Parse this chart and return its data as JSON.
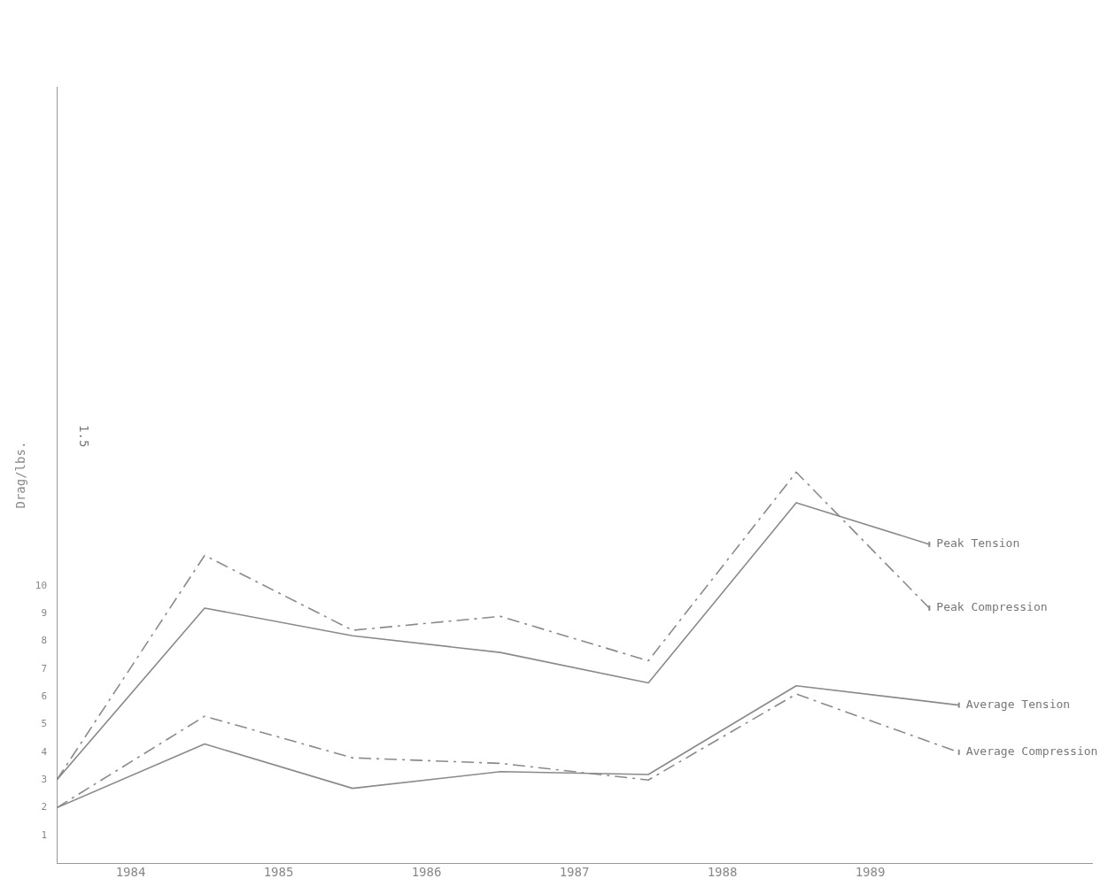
{
  "chart_data": {
    "type": "line",
    "ylabel": "Drag/lbs.",
    "annotations": [
      "1.5"
    ],
    "xlim": [
      1983.5,
      1990.5
    ],
    "xticks": [
      1984,
      1985,
      1986,
      1987,
      1988,
      1989
    ],
    "ylim": [
      0,
      28
    ],
    "yticks": [
      1,
      2,
      3,
      4,
      5,
      6,
      7,
      8,
      9,
      10
    ],
    "marker": "none",
    "legend": false,
    "series": [
      {
        "name": "Peak Tension",
        "color": "#8a8a8a",
        "line_style": "solid",
        "x": [
          1983.5,
          1984.5,
          1985.5,
          1986.5,
          1987.5,
          1988.5,
          1989.4
        ],
        "values": [
          3.0,
          9.2,
          8.2,
          7.6,
          6.5,
          13.0,
          11.5
        ]
      },
      {
        "name": "Peak Compression",
        "color": "#8a8a8a",
        "line_style": "dashed",
        "x": [
          1983.5,
          1984.5,
          1985.5,
          1986.5,
          1987.5,
          1988.5,
          1989.4
        ],
        "values": [
          3.0,
          11.1,
          8.4,
          8.9,
          7.3,
          14.1,
          9.2
        ]
      },
      {
        "name": "Average Tension",
        "color": "#8a8a8a",
        "line_style": "solid",
        "x": [
          1983.5,
          1984.5,
          1985.5,
          1986.5,
          1987.5,
          1988.5,
          1989.6
        ],
        "values": [
          2.0,
          4.3,
          2.7,
          3.3,
          3.2,
          6.4,
          5.7
        ]
      },
      {
        "name": "Average Compression",
        "color": "#8a8a8a",
        "line_style": "dashed",
        "x": [
          1983.5,
          1984.5,
          1985.5,
          1986.5,
          1987.5,
          1988.5,
          1989.6
        ],
        "values": [
          2.0,
          5.3,
          3.8,
          3.6,
          3.0,
          6.1,
          4.0
        ]
      }
    ]
  }
}
